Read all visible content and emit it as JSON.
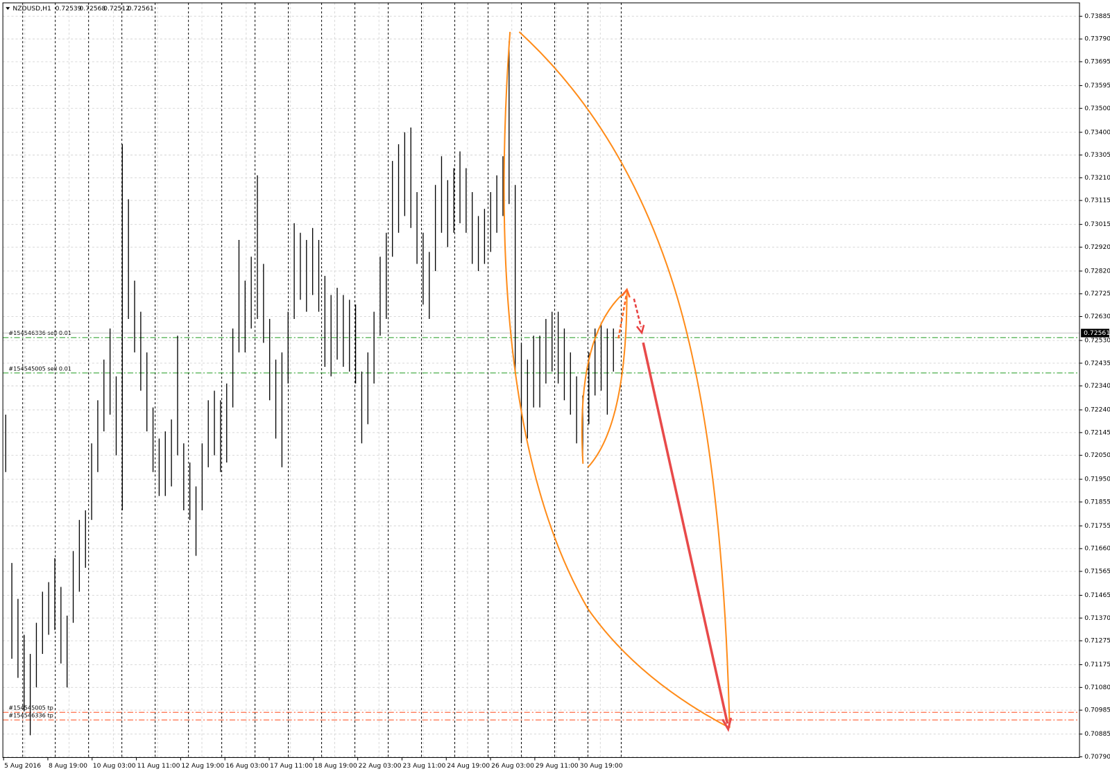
{
  "chart_data": {
    "type": "ohlc",
    "title": "NZDUSD,H1",
    "ohlc": [
      0.72539,
      0.72568,
      0.72512,
      0.72561
    ],
    "categories": [
      "5 Aug 2016",
      "8 Aug 19:00",
      "10 Aug 03:00",
      "11 Aug 11:00",
      "12 Aug 19:00",
      "16 Aug 03:00",
      "17 Aug 11:00",
      "18 Aug 19:00",
      "22 Aug 03:00",
      "23 Aug 11:00",
      "24 Aug 19:00",
      "26 Aug 03:00",
      "29 Aug 11:00",
      "30 Aug 19:00"
    ],
    "color": "#000000",
    "high": [
      0.7222,
      0.716,
      0.7145,
      0.713,
      0.7122,
      0.7135,
      0.7148,
      0.7152,
      0.7162,
      0.715,
      0.7138,
      0.7165,
      0.7178,
      0.7182,
      0.721,
      0.7228,
      0.7245,
      0.7258,
      0.7238,
      0.7335,
      0.7312,
      0.7278,
      0.7265,
      0.7248,
      0.7225,
      0.7212,
      0.7215,
      0.722,
      0.7255,
      0.721,
      0.7202,
      0.7192,
      0.721,
      0.7228,
      0.7232,
      0.7228,
      0.7235,
      0.7258,
      0.7295,
      0.7278,
      0.7288,
      0.7322,
      0.7285,
      0.7262,
      0.7245,
      0.7248,
      0.7265,
      0.7302,
      0.7298,
      0.7295,
      0.73,
      0.7295,
      0.728,
      0.7272,
      0.7275,
      0.7272,
      0.727,
      0.7268,
      0.724,
      0.7248,
      0.7265,
      0.7288,
      0.7298,
      0.7328,
      0.7335,
      0.734,
      0.7342,
      0.7315,
      0.7298,
      0.729,
      0.7318,
      0.733,
      0.732,
      0.7325,
      0.7332,
      0.7325,
      0.7315,
      0.7305,
      0.7308,
      0.7315,
      0.7322,
      0.733,
      0.7378,
      0.7318,
      0.7252,
      0.7245,
      0.7255,
      0.7255,
      0.7262,
      0.7265,
      0.7265,
      0.7258,
      0.7248,
      0.7238,
      0.723,
      0.7248,
      0.7258,
      0.726,
      0.7258,
      0.7258
    ],
    "low": [
      0.7198,
      0.712,
      0.7112,
      0.7098,
      0.7088,
      0.7108,
      0.7122,
      0.713,
      0.7132,
      0.7118,
      0.7108,
      0.7135,
      0.7148,
      0.7158,
      0.7178,
      0.7198,
      0.7215,
      0.7222,
      0.7205,
      0.7182,
      0.7262,
      0.7248,
      0.7232,
      0.7215,
      0.7198,
      0.7188,
      0.7188,
      0.7192,
      0.7205,
      0.7182,
      0.7178,
      0.7163,
      0.7182,
      0.72,
      0.7205,
      0.7198,
      0.7202,
      0.7225,
      0.7248,
      0.7248,
      0.7258,
      0.7262,
      0.7252,
      0.7228,
      0.7212,
      0.72,
      0.7235,
      0.7262,
      0.727,
      0.7265,
      0.7272,
      0.7265,
      0.7242,
      0.7238,
      0.7245,
      0.7242,
      0.724,
      0.7235,
      0.721,
      0.7218,
      0.7235,
      0.7255,
      0.7262,
      0.7288,
      0.7298,
      0.7305,
      0.73,
      0.7285,
      0.7268,
      0.7262,
      0.7282,
      0.7298,
      0.7292,
      0.7298,
      0.7302,
      0.7298,
      0.7285,
      0.7282,
      0.7285,
      0.729,
      0.7298,
      0.7305,
      0.731,
      0.724,
      0.721,
      0.7212,
      0.7225,
      0.7225,
      0.7235,
      0.724,
      0.7235,
      0.7228,
      0.7222,
      0.721,
      0.7204,
      0.7218,
      0.723,
      0.7232,
      0.7222,
      0.724
    ],
    "ylim": [
      0.70787,
      0.73941
    ],
    "yticks": [
      {
        "value": 0.73885,
        "label": "0.73885"
      },
      {
        "value": 0.7379,
        "label": "0.73790"
      },
      {
        "value": 0.73695,
        "label": "0.73695"
      },
      {
        "value": 0.73595,
        "label": "0.73595"
      },
      {
        "value": 0.735,
        "label": "0.73500"
      },
      {
        "value": 0.734,
        "label": "0.73400"
      },
      {
        "value": 0.73305,
        "label": "0.73305"
      },
      {
        "value": 0.7321,
        "label": "0.73210"
      },
      {
        "value": 0.73115,
        "label": "0.73115"
      },
      {
        "value": 0.73015,
        "label": "0.73015"
      },
      {
        "value": 0.7292,
        "label": "0.72920"
      },
      {
        "value": 0.7282,
        "label": "0.72820"
      },
      {
        "value": 0.72725,
        "label": "0.72725"
      },
      {
        "value": 0.7263,
        "label": "0.72630"
      },
      {
        "value": 0.7253,
        "label": "0.72530"
      },
      {
        "value": 0.72435,
        "label": "0.72435"
      },
      {
        "value": 0.7234,
        "label": "0.72340"
      },
      {
        "value": 0.7224,
        "label": "0.72240"
      },
      {
        "value": 0.72145,
        "label": "0.72145"
      },
      {
        "value": 0.7205,
        "label": "0.72050"
      },
      {
        "value": 0.7195,
        "label": "0.71950"
      },
      {
        "value": 0.71855,
        "label": "0.71855"
      },
      {
        "value": 0.71755,
        "label": "0.71755"
      },
      {
        "value": 0.7166,
        "label": "0.71660"
      },
      {
        "value": 0.71565,
        "label": "0.71565"
      },
      {
        "value": 0.71465,
        "label": "0.71465"
      },
      {
        "value": 0.7137,
        "label": "0.71370"
      },
      {
        "value": 0.71275,
        "label": "0.71275"
      },
      {
        "value": 0.71175,
        "label": "0.71175"
      },
      {
        "value": 0.7108,
        "label": "0.71080"
      },
      {
        "value": 0.70985,
        "label": "0.70985"
      },
      {
        "value": 0.70885,
        "label": "0.70885"
      },
      {
        "value": 0.7079,
        "label": "0.70790"
      }
    ],
    "grid": true,
    "current_price": 0.72561,
    "price_lines": [
      {
        "name": "#154546336 sell 0.01",
        "value": 0.72542,
        "color": "#1f9a1f"
      },
      {
        "name": "#154545005 sell 0.01",
        "value": 0.72394,
        "color": "#1f9a1f"
      },
      {
        "name": "#154545005 tp",
        "value": 0.70976,
        "color": "#ff4a1c"
      },
      {
        "name": "#154546336 tp",
        "value": 0.70944,
        "color": "#ff4a1c"
      }
    ]
  }
}
